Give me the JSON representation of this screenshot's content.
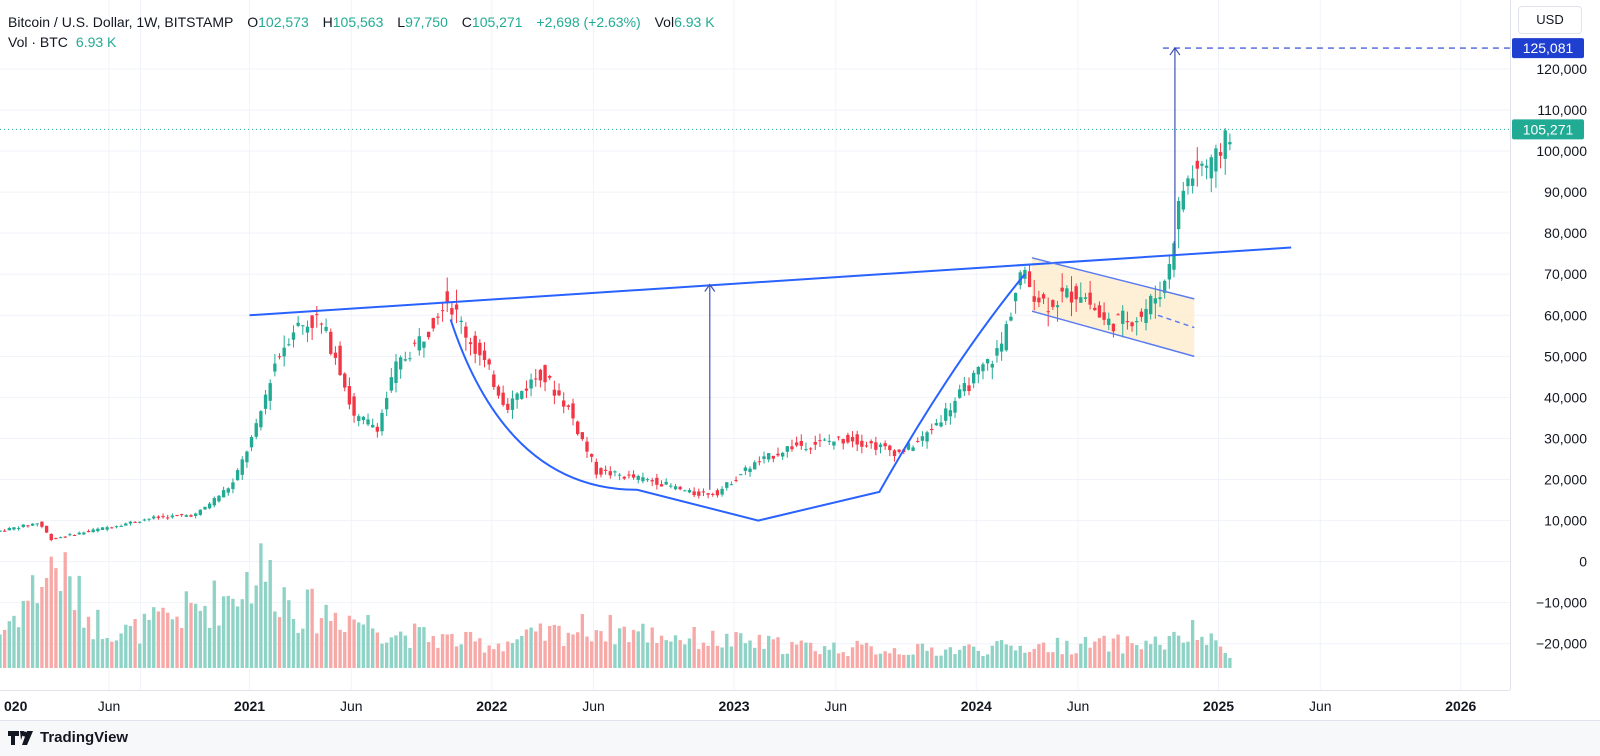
{
  "legend": {
    "title": "Bitcoin / U.S. Dollar, 1W, BITSTAMP",
    "open_label": "O",
    "open": "102,573",
    "high_label": "H",
    "high": "105,563",
    "low_label": "L",
    "low": "97,750",
    "close_label": "C",
    "close": "105,271",
    "change": "+2,698 (+2.63%)",
    "vol_label": "Vol",
    "vol": "6.93 K",
    "vol_row_label": "Vol · BTC",
    "vol_row_value": "6.93 K"
  },
  "currency": "USD",
  "branding": "TradingView",
  "colors": {
    "up": "#22ab94",
    "down": "#f23645",
    "trendline": "#2962ff",
    "target_label_bg": "#1e3fd0",
    "flag_fill": "#fdebc8"
  },
  "chart_data": {
    "type": "candlestick",
    "symbol": "BTCUSD",
    "interval": "1W",
    "y_ticks": [
      -20000,
      -10000,
      0,
      10000,
      20000,
      30000,
      40000,
      50000,
      60000,
      70000,
      80000,
      90000,
      100000,
      110000,
      120000
    ],
    "y_tick_labels": [
      "−20,000",
      "−10,000",
      "0",
      "10,000",
      "20,000",
      "30,000",
      "40,000",
      "50,000",
      "60,000",
      "70,000",
      "80,000",
      "90,000",
      "100,000",
      "110,000",
      "120,000"
    ],
    "ylim": [
      -27000,
      135000
    ],
    "x_ticks": [
      {
        "label": "020",
        "t": 2020.55,
        "bold": true
      },
      {
        "label": "Jun",
        "t": 2020.42,
        "bold": false
      },
      {
        "label": "2021",
        "t": 2021.0,
        "bold": true
      },
      {
        "label": "Jun",
        "t": 2021.42,
        "bold": false
      },
      {
        "label": "2022",
        "t": 2022.0,
        "bold": true
      },
      {
        "label": "Jun",
        "t": 2022.42,
        "bold": false
      },
      {
        "label": "2023",
        "t": 2023.0,
        "bold": true
      },
      {
        "label": "Jun",
        "t": 2023.42,
        "bold": false
      },
      {
        "label": "2024",
        "t": 2024.0,
        "bold": true
      },
      {
        "label": "Jun",
        "t": 2024.42,
        "bold": false
      },
      {
        "label": "2025",
        "t": 2025.0,
        "bold": true
      },
      {
        "label": "Jun",
        "t": 2025.42,
        "bold": false
      },
      {
        "label": "2026",
        "t": 2026.0,
        "bold": true
      }
    ],
    "price_labels": [
      {
        "text": "125,081",
        "value": 125081,
        "kind": "target"
      },
      {
        "text": "105,271",
        "value": 105271,
        "kind": "last"
      }
    ],
    "price_path": [
      [
        2019.97,
        7300
      ],
      [
        2020.15,
        9500
      ],
      [
        2020.2,
        5500
      ],
      [
        2020.5,
        9200
      ],
      [
        2020.6,
        10500
      ],
      [
        2020.8,
        11500
      ],
      [
        2020.95,
        19000
      ],
      [
        2021.05,
        33000
      ],
      [
        2021.12,
        48000
      ],
      [
        2021.2,
        57000
      ],
      [
        2021.3,
        59000
      ],
      [
        2021.38,
        50000
      ],
      [
        2021.45,
        35000
      ],
      [
        2021.55,
        33000
      ],
      [
        2021.62,
        47000
      ],
      [
        2021.75,
        56000
      ],
      [
        2021.83,
        65000
      ],
      [
        2021.9,
        57000
      ],
      [
        2022.0,
        47000
      ],
      [
        2022.08,
        38000
      ],
      [
        2022.22,
        46000
      ],
      [
        2022.33,
        38000
      ],
      [
        2022.45,
        22000
      ],
      [
        2022.55,
        21000
      ],
      [
        2022.7,
        19500
      ],
      [
        2022.85,
        16500
      ],
      [
        2022.95,
        16800
      ],
      [
        2023.08,
        23000
      ],
      [
        2023.25,
        28000
      ],
      [
        2023.5,
        30000
      ],
      [
        2023.7,
        26500
      ],
      [
        2023.8,
        30000
      ],
      [
        2023.9,
        37000
      ],
      [
        2024.0,
        44000
      ],
      [
        2024.12,
        52000
      ],
      [
        2024.2,
        70000
      ],
      [
        2024.3,
        63000
      ],
      [
        2024.45,
        66000
      ],
      [
        2024.55,
        58000
      ],
      [
        2024.7,
        60000
      ],
      [
        2024.8,
        68000
      ],
      [
        2024.87,
        91000
      ],
      [
        2024.95,
        97000
      ],
      [
        2025.0,
        95000
      ],
      [
        2025.05,
        105271
      ]
    ],
    "volume_profile": [
      [
        2019.97,
        0.3
      ],
      [
        2020.2,
        0.9
      ],
      [
        2020.35,
        0.4
      ],
      [
        2020.5,
        0.3
      ],
      [
        2020.9,
        0.6
      ],
      [
        2021.05,
        0.85
      ],
      [
        2021.2,
        0.5
      ],
      [
        2021.4,
        0.45
      ],
      [
        2021.6,
        0.3
      ],
      [
        2021.8,
        0.25
      ],
      [
        2022.0,
        0.2
      ],
      [
        2022.4,
        0.35
      ],
      [
        2022.85,
        0.25
      ],
      [
        2023.3,
        0.18
      ],
      [
        2023.8,
        0.15
      ],
      [
        2024.2,
        0.18
      ],
      [
        2024.8,
        0.22
      ],
      [
        2024.9,
        0.3
      ],
      [
        2025.05,
        0.12
      ]
    ],
    "annotations": {
      "resistance_line": [
        [
          2021.0,
          60000
        ],
        [
          2025.3,
          76500
        ]
      ],
      "cup_curve": [
        [
          2021.83,
          59000
        ],
        [
          2022.6,
          17500
        ],
        [
          2023.1,
          10000
        ],
        [
          2023.6,
          17000
        ],
        [
          2024.2,
          70000
        ]
      ],
      "flag_upper": [
        [
          2024.23,
          74000
        ],
        [
          2024.9,
          64000
        ]
      ],
      "flag_lower": [
        [
          2024.23,
          61000
        ],
        [
          2024.9,
          50000
        ]
      ],
      "flag_mid": [
        [
          2024.75,
          60000
        ],
        [
          2024.9,
          57000
        ]
      ],
      "cup_depth_arrow": [
        [
          2022.9,
          17500
        ],
        [
          2022.9,
          67500
        ]
      ],
      "target_arrow": [
        [
          2024.82,
          75000
        ],
        [
          2024.82,
          125081
        ]
      ],
      "target_level": 125081
    }
  }
}
